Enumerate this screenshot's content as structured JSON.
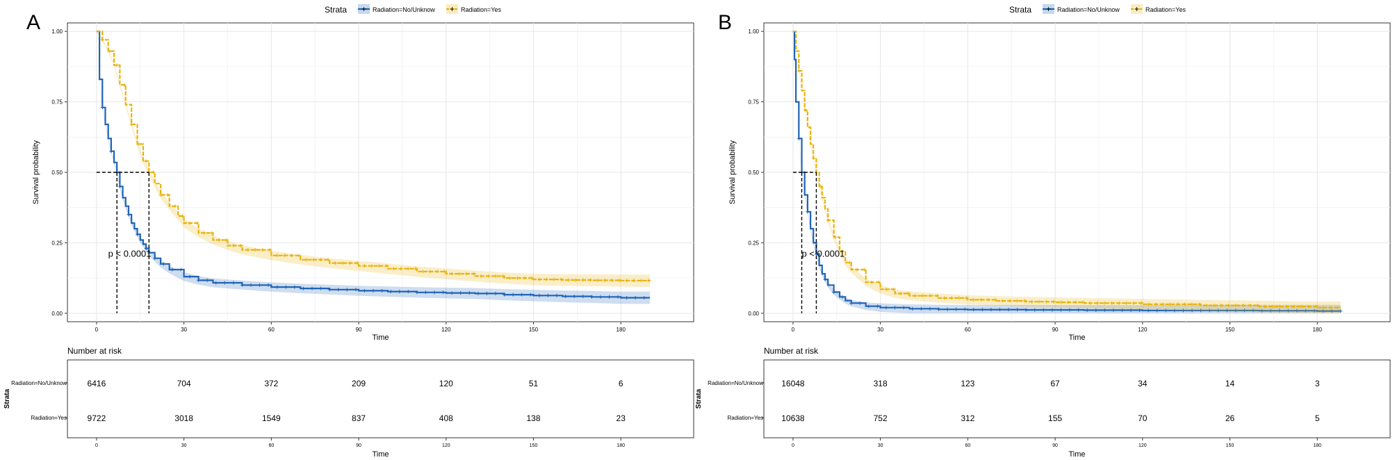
{
  "figure": {
    "colors": {
      "no_unknow": "#1f63b5",
      "yes": "#e8b20a",
      "grid": "#e6e6e6",
      "frame": "#333333"
    }
  },
  "chart_data": [
    {
      "type": "line",
      "subtype": "kaplan-meier",
      "panel_label": "A",
      "legend_title": "Strata",
      "legend_position": "top",
      "xlabel": "Time",
      "ylabel": "Survival probability",
      "xlim": [
        -10,
        205
      ],
      "ylim": [
        -0.03,
        1.03
      ],
      "x_ticks": [
        "0",
        "30",
        "60",
        "90",
        "120",
        "150",
        "180"
      ],
      "y_ticks": [
        "0.00",
        "0.25",
        "0.50",
        "0.75",
        "1.00"
      ],
      "grid": true,
      "pvalue_text": "p < 0.0001",
      "pvalue_position": [
        4,
        0.2
      ],
      "median_line_y": 0.5,
      "medians": [
        7,
        18
      ],
      "series": [
        {
          "name": "Radiation=No/Unknow",
          "legend_label": "Radiation=No/Unknow",
          "x": [
            0,
            1,
            2,
            3,
            4,
            5,
            6,
            7,
            8,
            9,
            10,
            11,
            12,
            13,
            14,
            15,
            16,
            17,
            18,
            20,
            22,
            25,
            30,
            35,
            40,
            50,
            60,
            70,
            80,
            90,
            100,
            110,
            120,
            130,
            140,
            150,
            160,
            170,
            180,
            190
          ],
          "y": [
            1.0,
            0.83,
            0.73,
            0.67,
            0.62,
            0.575,
            0.535,
            0.5,
            0.45,
            0.41,
            0.38,
            0.35,
            0.32,
            0.3,
            0.28,
            0.26,
            0.245,
            0.23,
            0.215,
            0.195,
            0.175,
            0.155,
            0.13,
            0.117,
            0.108,
            0.1,
            0.093,
            0.088,
            0.084,
            0.08,
            0.077,
            0.074,
            0.072,
            0.07,
            0.066,
            0.063,
            0.06,
            0.058,
            0.055,
            0.055
          ]
        },
        {
          "name": "Radiation=Yes",
          "legend_label": "Radiation=Yes",
          "x": [
            0,
            2,
            4,
            6,
            8,
            10,
            12,
            14,
            16,
            18,
            20,
            22,
            25,
            28,
            30,
            35,
            40,
            45,
            50,
            60,
            70,
            80,
            90,
            100,
            110,
            120,
            130,
            140,
            150,
            160,
            170,
            180,
            190
          ],
          "y": [
            1.0,
            0.97,
            0.93,
            0.88,
            0.81,
            0.74,
            0.67,
            0.6,
            0.54,
            0.5,
            0.46,
            0.42,
            0.38,
            0.345,
            0.32,
            0.285,
            0.26,
            0.24,
            0.225,
            0.205,
            0.19,
            0.178,
            0.168,
            0.158,
            0.148,
            0.14,
            0.132,
            0.125,
            0.12,
            0.118,
            0.117,
            0.116,
            0.115
          ]
        }
      ],
      "risk_table": {
        "title": "Number at risk",
        "xlabel": "Time",
        "ylabel": "Strata",
        "times": [
          "0",
          "30",
          "60",
          "90",
          "120",
          "150",
          "180"
        ],
        "rows": [
          {
            "label": "Radiation=No/Unknow",
            "values": [
              "6416",
              "704",
              "372",
              "209",
              "120",
              "51",
              "6"
            ]
          },
          {
            "label": "Radiation=Yes",
            "values": [
              "9722",
              "3018",
              "1549",
              "837",
              "408",
              "138",
              "23"
            ]
          }
        ]
      }
    },
    {
      "type": "line",
      "subtype": "kaplan-meier",
      "panel_label": "B",
      "legend_title": "Strata",
      "legend_position": "top",
      "xlabel": "Time",
      "ylabel": "Survival probability",
      "xlim": [
        -10,
        205
      ],
      "ylim": [
        -0.03,
        1.03
      ],
      "x_ticks": [
        "0",
        "30",
        "60",
        "90",
        "120",
        "150",
        "180"
      ],
      "y_ticks": [
        "0.00",
        "0.25",
        "0.50",
        "0.75",
        "1.00"
      ],
      "grid": true,
      "pvalue_text": "p < 0.0001",
      "pvalue_position": [
        3,
        0.2
      ],
      "median_line_y": 0.5,
      "medians": [
        3,
        8
      ],
      "series": [
        {
          "name": "Radiation=No/Unknow",
          "legend_label": "Radiation=No/Unknow",
          "x": [
            0,
            0.5,
            1,
            2,
            3,
            4,
            5,
            6,
            7,
            8,
            9,
            10,
            11,
            12,
            14,
            16,
            18,
            20,
            25,
            30,
            40,
            50,
            60,
            80,
            100,
            120,
            140,
            160,
            180,
            188
          ],
          "y": [
            1.0,
            0.9,
            0.75,
            0.62,
            0.5,
            0.42,
            0.36,
            0.3,
            0.25,
            0.21,
            0.17,
            0.14,
            0.12,
            0.1,
            0.075,
            0.058,
            0.045,
            0.036,
            0.025,
            0.02,
            0.016,
            0.014,
            0.013,
            0.012,
            0.011,
            0.01,
            0.01,
            0.009,
            0.008,
            0.008
          ]
        },
        {
          "name": "Radiation=Yes",
          "legend_label": "Radiation=Yes",
          "x": [
            0,
            1,
            2,
            3,
            4,
            5,
            6,
            7,
            8,
            9,
            10,
            11,
            12,
            14,
            16,
            18,
            20,
            25,
            30,
            35,
            40,
            50,
            60,
            70,
            80,
            90,
            100,
            120,
            140,
            160,
            180,
            188
          ],
          "y": [
            1.0,
            0.93,
            0.86,
            0.79,
            0.72,
            0.66,
            0.6,
            0.55,
            0.5,
            0.45,
            0.41,
            0.37,
            0.33,
            0.27,
            0.22,
            0.18,
            0.155,
            0.11,
            0.085,
            0.07,
            0.062,
            0.054,
            0.048,
            0.044,
            0.041,
            0.039,
            0.036,
            0.032,
            0.028,
            0.024,
            0.02,
            0.02
          ]
        }
      ],
      "risk_table": {
        "title": "Number at risk",
        "xlabel": "Time",
        "ylabel": "Strata",
        "times": [
          "0",
          "30",
          "60",
          "90",
          "120",
          "150",
          "180"
        ],
        "rows": [
          {
            "label": "Radiation=No/Unknow",
            "values": [
              "16048",
              "318",
              "123",
              "67",
              "34",
              "14",
              "3"
            ]
          },
          {
            "label": "Radiation=Yes",
            "values": [
              "10638",
              "752",
              "312",
              "155",
              "70",
              "26",
              "5"
            ]
          }
        ]
      }
    }
  ]
}
